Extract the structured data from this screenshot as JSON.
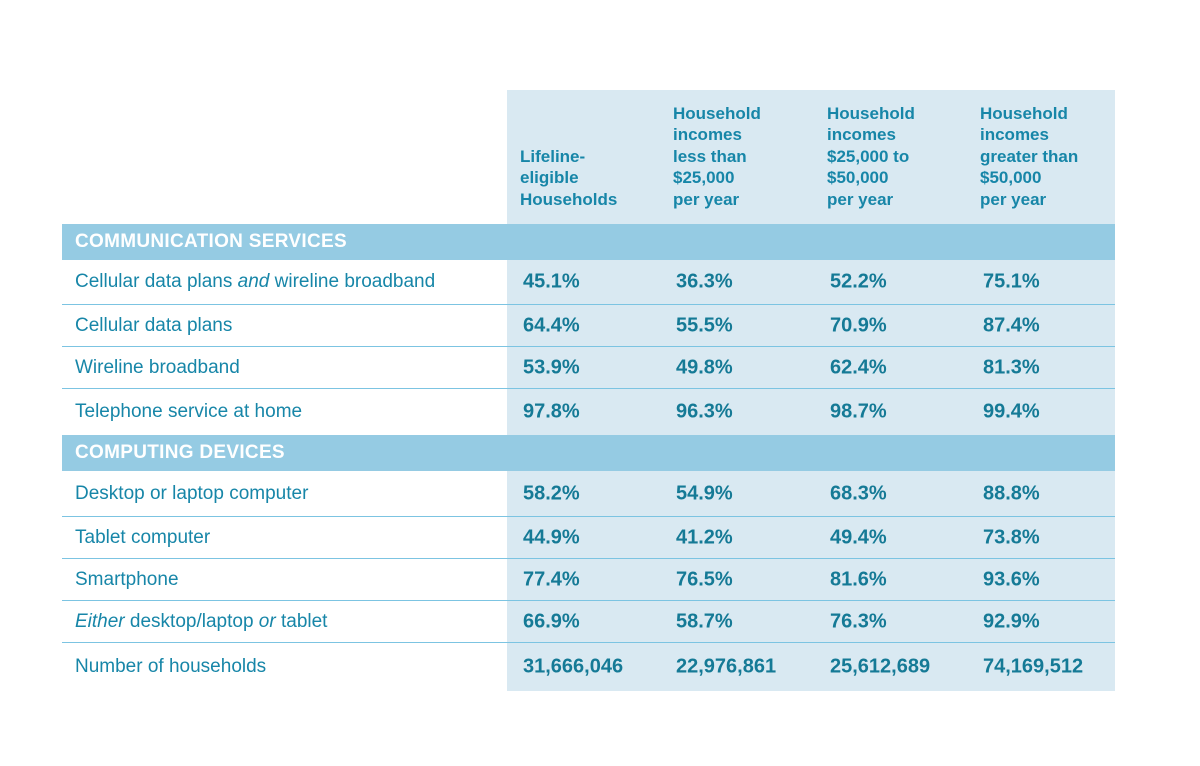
{
  "chart_data": {
    "type": "table",
    "columns": [
      "Lifeline-\neligible\nHouseholds",
      "Household\nincomes\nless than\n$25,000\nper year",
      "Household\nincomes\n$25,000 to\n$50,000\nper year",
      "Household\nincomes\ngreater than\n$50,000\nper year"
    ],
    "sections": [
      {
        "title": "COMMUNICATION SERVICES",
        "rows": [
          {
            "label": [
              {
                "t": "Cellular data plans "
              },
              {
                "t": "and",
                "i": true
              },
              {
                "t": " wireline broadband"
              }
            ],
            "values": [
              "45.1%",
              "36.3%",
              "52.2%",
              "75.1%"
            ]
          },
          {
            "label": [
              {
                "t": "Cellular data plans"
              }
            ],
            "values": [
              "64.4%",
              "55.5%",
              "70.9%",
              "87.4%"
            ]
          },
          {
            "label": [
              {
                "t": "Wireline broadband"
              }
            ],
            "values": [
              "53.9%",
              "49.8%",
              "62.4%",
              "81.3%"
            ]
          },
          {
            "label": [
              {
                "t": "Telephone service at home"
              }
            ],
            "values": [
              "97.8%",
              "96.3%",
              "98.7%",
              "99.4%"
            ]
          }
        ]
      },
      {
        "title": "COMPUTING DEVICES",
        "rows": [
          {
            "label": [
              {
                "t": "Desktop or laptop computer"
              }
            ],
            "values": [
              "58.2%",
              "54.9%",
              "68.3%",
              "88.8%"
            ]
          },
          {
            "label": [
              {
                "t": "Tablet computer"
              }
            ],
            "values": [
              "44.9%",
              "41.2%",
              "49.4%",
              "73.8%"
            ]
          },
          {
            "label": [
              {
                "t": "Smartphone"
              }
            ],
            "values": [
              "77.4%",
              "76.5%",
              "81.6%",
              "93.6%"
            ]
          },
          {
            "label": [
              {
                "t": "Either",
                "i": true
              },
              {
                "t": " desktop/laptop "
              },
              {
                "t": "or",
                "i": true
              },
              {
                "t": " tablet"
              }
            ],
            "values": [
              "66.9%",
              "58.7%",
              "76.3%",
              "92.9%"
            ]
          },
          {
            "label": [
              {
                "t": "Number of households"
              }
            ],
            "values": [
              "31,666,046",
              "22,976,861",
              "25,612,689",
              "74,169,512"
            ]
          }
        ]
      }
    ],
    "colors": {
      "panel": "#d9e9f2",
      "section_bar": "#95cbe3",
      "text": "#1786a8",
      "values": "#157a96",
      "rule": "#7cc4e2"
    }
  }
}
